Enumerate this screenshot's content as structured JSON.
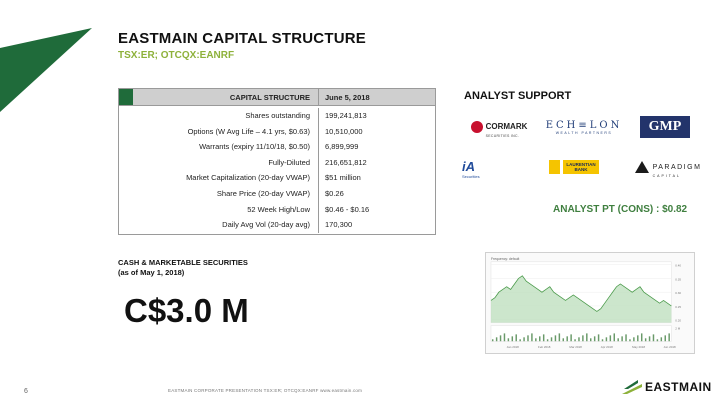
{
  "header": {
    "title": "EASTMAIN CAPITAL STRUCTURE",
    "subtitle": "TSX:ER; OTCQX:EANRF"
  },
  "capital_table": {
    "header_label": "CAPITAL STRUCTURE",
    "header_date": "June 5, 2018",
    "rows": [
      {
        "label": "Shares outstanding",
        "value": "199,241,813"
      },
      {
        "label": "Options (W Avg Life – 4.1 yrs, $0.63)",
        "value": "10,510,000"
      },
      {
        "label": "Warrants (expiry 11/10/18, $0.50)",
        "value": "6,899,999"
      },
      {
        "label": "Fully-Diluted",
        "value": "216,651,812"
      },
      {
        "label": "Market Capitalization (20-day VWAP)",
        "value": "$51 million"
      },
      {
        "label": "Share Price (20-day VWAP)",
        "value": "$0.26"
      },
      {
        "label": "52 Week High/Low",
        "value": "$0.46 - $0.16"
      },
      {
        "label": "Daily Avg Vol (20-day avg)",
        "value": "170,300"
      }
    ],
    "accent_color": "#1f6b3a"
  },
  "analyst_support": {
    "title": "ANALYST SUPPORT",
    "logos": {
      "cormark": {
        "name": "CORMARK",
        "sub": "SECURITIES INC."
      },
      "echelon": {
        "name": "ECH≡LON",
        "sub": "WEALTH PARTNERS"
      },
      "gmp": {
        "name": "GMP"
      },
      "ia": {
        "name": "iA",
        "sub": "Securities"
      },
      "laurentian": {
        "line1": "LAURENTIAN",
        "line2": "BANK"
      },
      "paradigm": {
        "name": "PARADIGM",
        "sub": "CAPITAL"
      }
    },
    "price_target": "ANALYST PT (CONS) : $0.82"
  },
  "cash": {
    "title_line1": "CASH & MARKETABLE SECURITIES",
    "title_line2": "(as of May 1, 2018)",
    "value": "C$3.0 M"
  },
  "stock_chart": {
    "header": "Frequency: default",
    "x_ticks": [
      "Jan 2018",
      "Feb 2018",
      "Mar 2018",
      "Apr 2018",
      "May 2018",
      "Jun 2018"
    ],
    "y_ticks": [
      "0.40",
      "0.35",
      "0.30",
      "0.25",
      "0.20"
    ],
    "volume_label": "2 M"
  },
  "footer": {
    "page_number": "6",
    "text": "EASTMAIN CORPORATE PRESENTATION    TSX:ER;  OTCQX:EANRF    www.eastmain.com",
    "logo_name": "EASTMAIN"
  },
  "colors": {
    "brand_green": "#1f6b3a",
    "accent_green": "#8db13a",
    "pt_green": "#3f7f3f"
  }
}
